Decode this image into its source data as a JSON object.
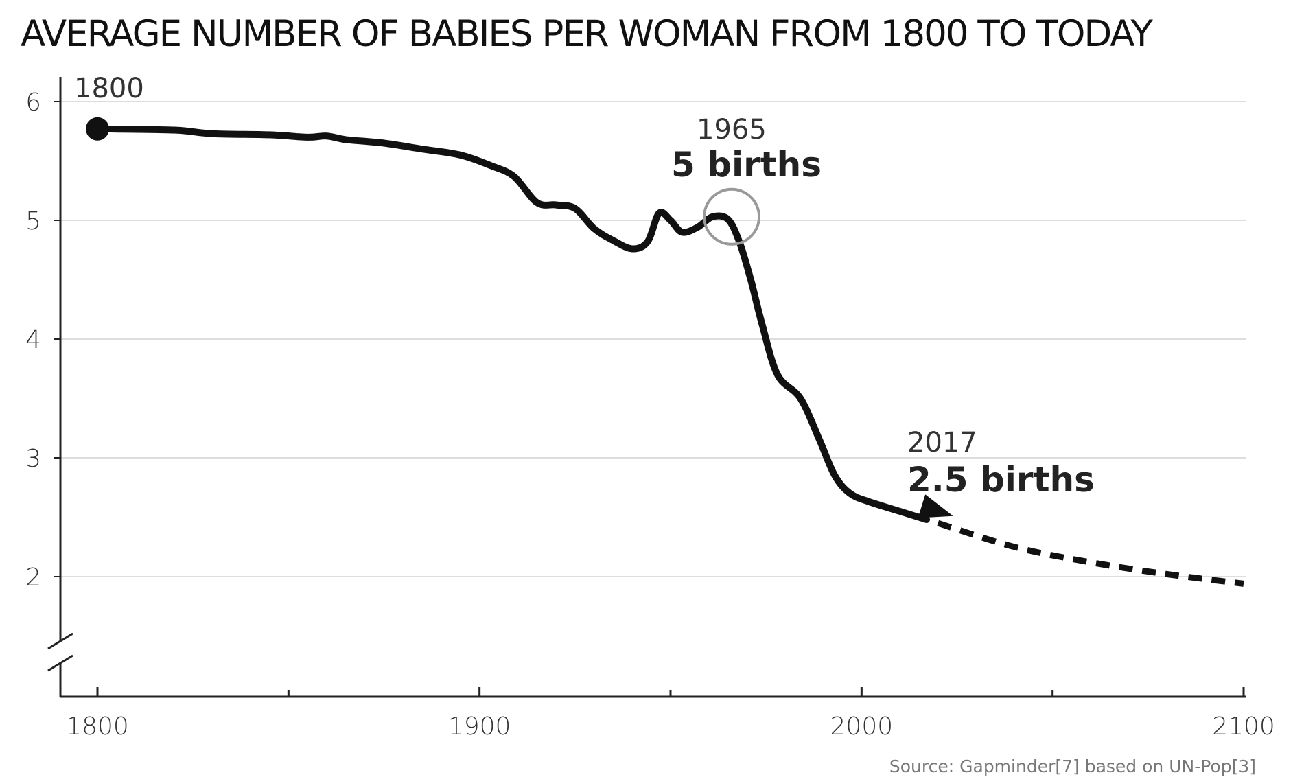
{
  "chart_data": {
    "type": "line",
    "title": "AVERAGE NUMBER OF BABIES PER WOMAN FROM 1800 TO TODAY",
    "xlabel": "",
    "ylabel": "",
    "xlim": [
      1790,
      2100
    ],
    "ylim": [
      1,
      6.2
    ],
    "x_ticks": [
      1800,
      1900,
      2000,
      2100
    ],
    "y_ticks": [
      2,
      3,
      4,
      5,
      6
    ],
    "y_axis_break": true,
    "grid": "horizontal",
    "series": [
      {
        "style": "solid",
        "color": "#111111",
        "points": [
          {
            "x": 1800,
            "y": 5.77
          },
          {
            "x": 1820,
            "y": 5.76
          },
          {
            "x": 1830,
            "y": 5.73
          },
          {
            "x": 1845,
            "y": 5.72
          },
          {
            "x": 1855,
            "y": 5.7
          },
          {
            "x": 1860,
            "y": 5.71
          },
          {
            "x": 1865,
            "y": 5.68
          },
          {
            "x": 1875,
            "y": 5.65
          },
          {
            "x": 1885,
            "y": 5.6
          },
          {
            "x": 1895,
            "y": 5.55
          },
          {
            "x": 1903,
            "y": 5.46
          },
          {
            "x": 1909,
            "y": 5.37
          },
          {
            "x": 1915,
            "y": 5.15
          },
          {
            "x": 1920,
            "y": 5.13
          },
          {
            "x": 1925,
            "y": 5.1
          },
          {
            "x": 1930,
            "y": 4.93
          },
          {
            "x": 1935,
            "y": 4.83
          },
          {
            "x": 1940,
            "y": 4.76
          },
          {
            "x": 1944,
            "y": 4.82
          },
          {
            "x": 1947,
            "y": 5.06
          },
          {
            "x": 1950,
            "y": 5.0
          },
          {
            "x": 1953,
            "y": 4.9
          },
          {
            "x": 1957,
            "y": 4.94
          },
          {
            "x": 1961,
            "y": 5.03
          },
          {
            "x": 1965,
            "y": 5.01
          },
          {
            "x": 1968,
            "y": 4.82
          },
          {
            "x": 1971,
            "y": 4.5
          },
          {
            "x": 1974,
            "y": 4.12
          },
          {
            "x": 1978,
            "y": 3.7
          },
          {
            "x": 1984,
            "y": 3.5
          },
          {
            "x": 1989,
            "y": 3.15
          },
          {
            "x": 1993,
            "y": 2.85
          },
          {
            "x": 1997,
            "y": 2.7
          },
          {
            "x": 2002,
            "y": 2.63
          },
          {
            "x": 2010,
            "y": 2.55
          },
          {
            "x": 2017,
            "y": 2.48
          }
        ]
      },
      {
        "style": "dashed",
        "color": "#111111",
        "points": [
          {
            "x": 2020,
            "y": 2.45
          },
          {
            "x": 2040,
            "y": 2.25
          },
          {
            "x": 2060,
            "y": 2.12
          },
          {
            "x": 2080,
            "y": 2.02
          },
          {
            "x": 2100,
            "y": 1.94
          }
        ]
      }
    ],
    "markers": [
      {
        "type": "dot",
        "x": 1800,
        "y": 5.77,
        "color": "#111111"
      },
      {
        "type": "circle",
        "x": 1966,
        "y": 5.03,
        "color": "#999999"
      },
      {
        "type": "arrow",
        "x": 2020,
        "y": 2.47,
        "color": "#111111"
      }
    ],
    "annotations": [
      {
        "year": "1800",
        "value": ""
      },
      {
        "year": "1965",
        "value": "5 births"
      },
      {
        "year": "2017",
        "value": "2.5 births"
      }
    ],
    "source": "Source: Gapminder[7] based on UN-Pop[3]"
  }
}
